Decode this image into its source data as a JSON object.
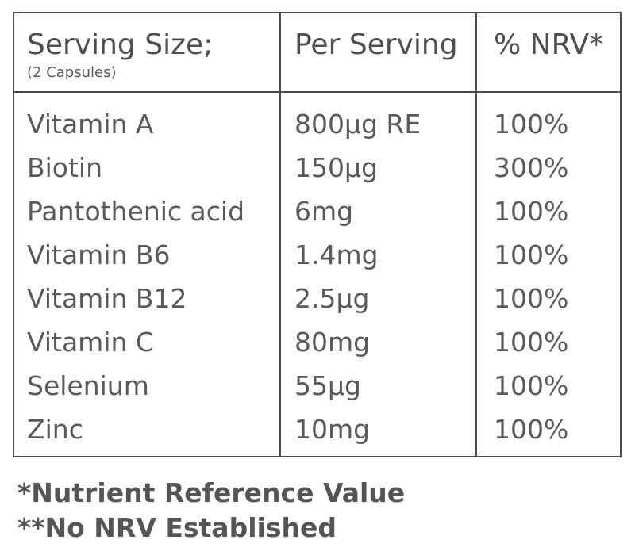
{
  "table": {
    "header": {
      "col1": "Serving Size;",
      "col1_sub": "(2 Capsules)",
      "col2": "Per Serving",
      "col3": "% NRV*"
    },
    "rows": [
      {
        "nutrient": "Vitamin A",
        "per_serving": "800μg RE",
        "nrv": "100%"
      },
      {
        "nutrient": "Biotin",
        "per_serving": "150μg",
        "nrv": "300%"
      },
      {
        "nutrient": "Pantothenic acid",
        "per_serving": "6mg",
        "nrv": "100%"
      },
      {
        "nutrient": "Vitamin B6",
        "per_serving": "1.4mg",
        "nrv": "100%"
      },
      {
        "nutrient": "Vitamin B12",
        "per_serving": "2.5μg",
        "nrv": "100%"
      },
      {
        "nutrient": "Vitamin C",
        "per_serving": "80mg",
        "nrv": "100%"
      },
      {
        "nutrient": "Selenium",
        "per_serving": "55μg",
        "nrv": "100%"
      },
      {
        "nutrient": "Zinc",
        "per_serving": "10mg",
        "nrv": "100%"
      }
    ]
  },
  "footnotes": {
    "note1": "*Nutrient Reference Value",
    "note2": "**No NRV Established"
  }
}
